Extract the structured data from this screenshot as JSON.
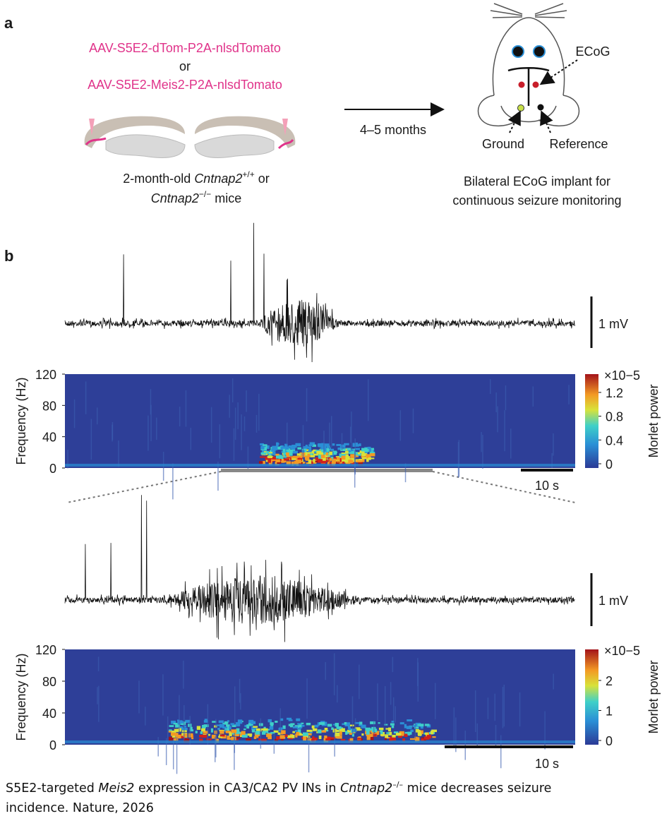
{
  "panel_a": {
    "label": "a",
    "vector_1": "AAV-S5E2-dTom-P2A-nlsdTomato",
    "or": "or",
    "vector_2": "AAV-S5E2-Meis2-P2A-nlsdTomato",
    "mice_1": [
      "2-month-old ",
      "Cntnap2",
      "+/+",
      " or"
    ],
    "mice_2": [
      "Cntnap2",
      "−/−",
      " mice"
    ],
    "duration": "4–5 months",
    "ecog": "ECoG",
    "ground": "Ground",
    "reference": "Reference",
    "implant_1": "Bilateral ECoG implant for",
    "implant_2": "continuous seizure monitoring"
  },
  "panel_b": {
    "label": "b",
    "recordings": [
      {
        "scale_bar": "1 mV",
        "y_label": "Frequency (Hz)",
        "yticks": [
          0,
          40,
          80,
          120
        ],
        "colorbar_label": "Morlet power",
        "colorbar_exponent": "×10−5",
        "colorbar_ticks": [
          0,
          0.4,
          0.8,
          1.2
        ],
        "time_scale": "10 s"
      },
      {
        "scale_bar": "1 mV",
        "y_label": "Frequency (Hz)",
        "yticks": [
          0,
          40,
          80,
          120
        ],
        "colorbar_label": "Morlet power",
        "colorbar_exponent": "×10−5",
        "colorbar_ticks": [
          0,
          1,
          2
        ],
        "time_scale": "10 s"
      }
    ]
  },
  "caption": {
    "line_1": [
      "S5E2-targeted ",
      "Meis2",
      " expression in CA3/CA2 PV INs in ",
      "Cntnap2",
      "–/–",
      " mice decreases seizure"
    ],
    "line_2": "incidence. Nature, 2026"
  }
}
